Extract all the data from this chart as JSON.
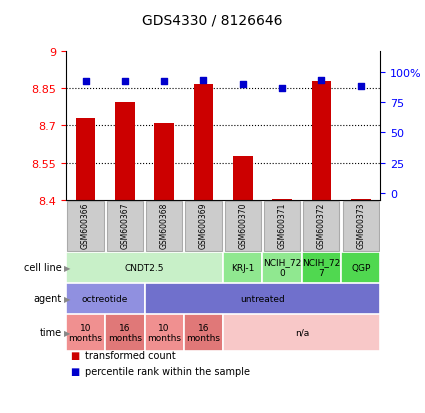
{
  "title": "GDS4330 / 8126646",
  "samples": [
    "GSM600366",
    "GSM600367",
    "GSM600368",
    "GSM600369",
    "GSM600370",
    "GSM600371",
    "GSM600372",
    "GSM600373"
  ],
  "transformed_count": [
    8.73,
    8.795,
    8.71,
    8.865,
    8.575,
    8.403,
    8.878,
    8.405
  ],
  "percentile_rank": [
    93,
    93,
    93,
    94,
    90,
    87,
    94,
    89
  ],
  "ylim": [
    8.4,
    9.0
  ],
  "yticks": [
    8.4,
    8.55,
    8.7,
    8.85,
    9.0
  ],
  "ytick_labels": [
    "8.4",
    "8.55",
    "8.7",
    "8.85",
    "9"
  ],
  "y2ticks": [
    0,
    25,
    50,
    75,
    100
  ],
  "y2tick_labels": [
    "0",
    "25",
    "50",
    "75",
    "100%"
  ],
  "grid_lines": [
    8.55,
    8.7,
    8.85
  ],
  "bar_color": "#cc0000",
  "dot_color": "#0000cc",
  "cell_line_groups": [
    {
      "label": "CNDT2.5",
      "start": 0,
      "end": 4,
      "color": "#c8f0c8"
    },
    {
      "label": "KRJ-1",
      "start": 4,
      "end": 5,
      "color": "#90e890"
    },
    {
      "label": "NCIH_72\n0",
      "start": 5,
      "end": 6,
      "color": "#90e890"
    },
    {
      "label": "NCIH_72\n7",
      "start": 6,
      "end": 7,
      "color": "#50d850"
    },
    {
      "label": "QGP",
      "start": 7,
      "end": 8,
      "color": "#50d850"
    }
  ],
  "agent_groups": [
    {
      "label": "octreotide",
      "start": 0,
      "end": 2,
      "color": "#9090e0"
    },
    {
      "label": "untreated",
      "start": 2,
      "end": 8,
      "color": "#7070cc"
    }
  ],
  "time_groups": [
    {
      "label": "10\nmonths",
      "start": 0,
      "end": 1,
      "color": "#f09090"
    },
    {
      "label": "16\nmonths",
      "start": 1,
      "end": 2,
      "color": "#e07878"
    },
    {
      "label": "10\nmonths",
      "start": 2,
      "end": 3,
      "color": "#f09090"
    },
    {
      "label": "16\nmonths",
      "start": 3,
      "end": 4,
      "color": "#e07878"
    },
    {
      "label": "n/a",
      "start": 4,
      "end": 8,
      "color": "#f8c8c8"
    }
  ],
  "row_labels": [
    "cell line",
    "agent",
    "time"
  ],
  "legend_items": [
    {
      "label": "transformed count",
      "color": "#cc0000"
    },
    {
      "label": "percentile rank within the sample",
      "color": "#0000cc"
    }
  ],
  "sample_box_color": "#cccccc",
  "sample_box_edge": "#aaaaaa"
}
